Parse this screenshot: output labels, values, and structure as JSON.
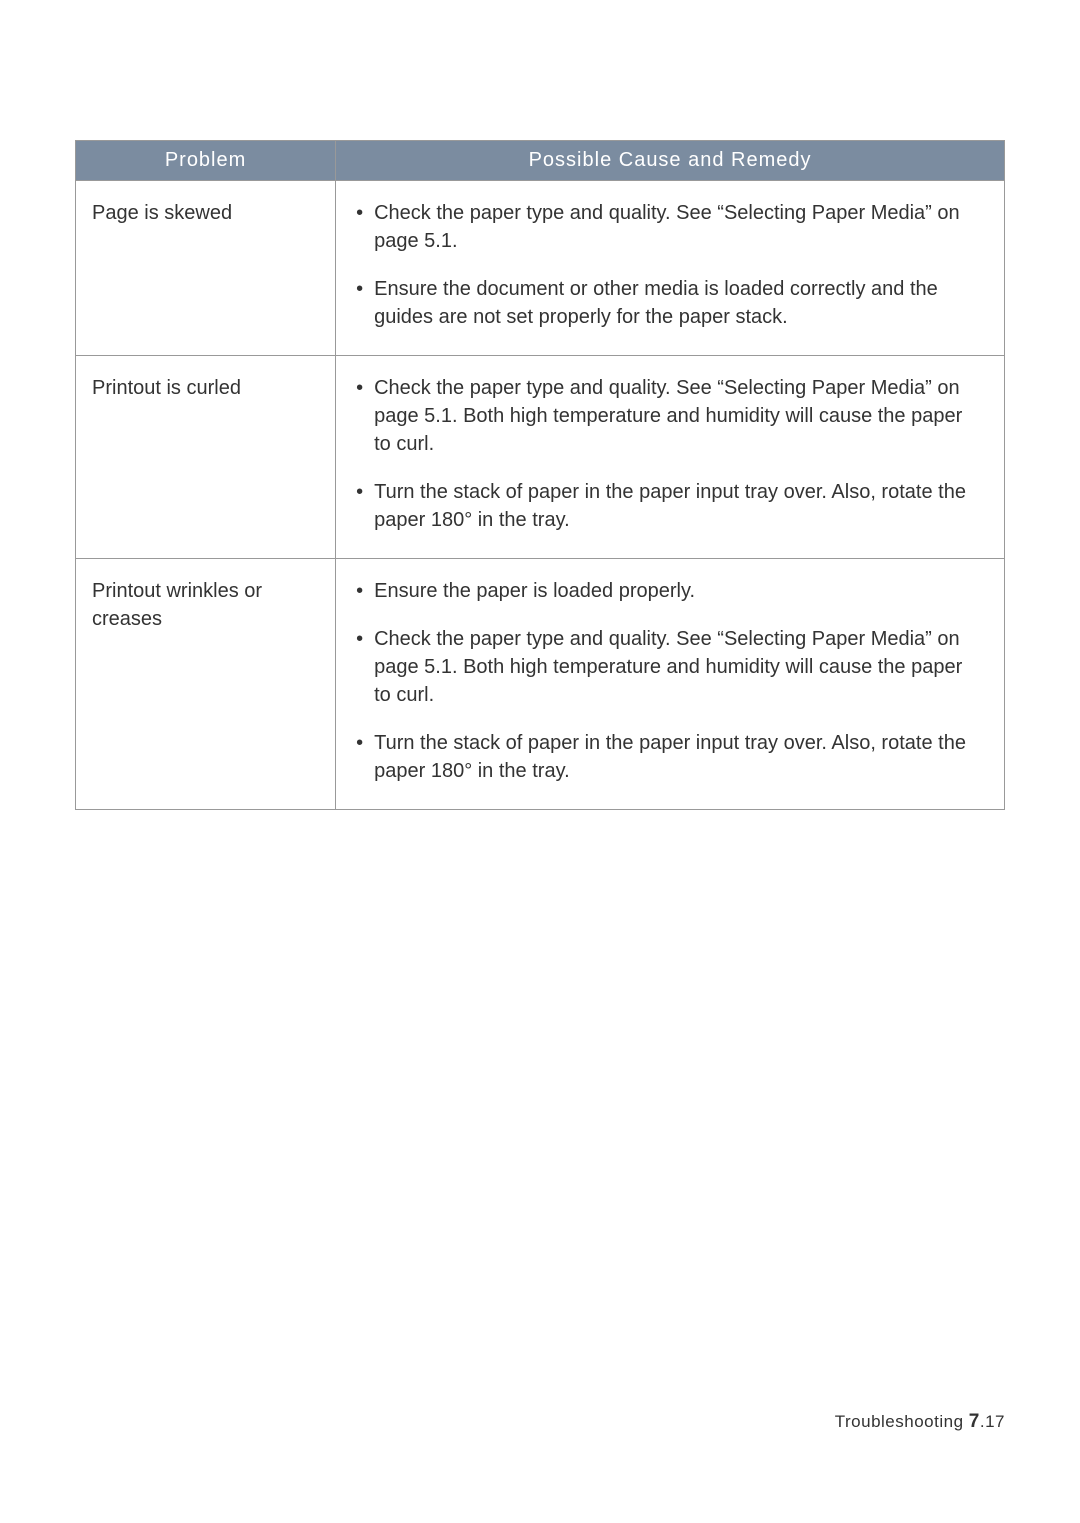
{
  "table": {
    "headers": {
      "problem": "Problem",
      "remedy": "Possible Cause and Remedy"
    },
    "rows": [
      {
        "problem": "Page is skewed",
        "remedies": [
          "Check the paper type and quality. See “Selecting Paper Media” on page 5.1.",
          "Ensure the document or other media is loaded correctly and the guides are not set properly for the paper stack."
        ]
      },
      {
        "problem": "Printout is curled",
        "remedies": [
          "Check the paper type and quality. See “Selecting Paper Media” on page 5.1. Both high temperature and humidity will cause the paper to curl.",
          "Turn the stack of paper in the paper input tray over. Also, rotate the paper 180° in the tray."
        ]
      },
      {
        "problem": "Printout wrinkles or creases",
        "remedies": [
          "Ensure the paper is loaded properly.",
          "Check the paper type and quality. See “Selecting Paper Media” on page 5.1. Both high temperature and humidity will cause the paper to curl.",
          "Turn the stack of paper in the paper input tray over. Also, rotate the paper 180° in the tray."
        ]
      }
    ]
  },
  "footer": {
    "section": "Troubleshooting",
    "chapter": "7",
    "page": ".17"
  },
  "colors": {
    "header_bg": "#7b8ca0",
    "header_text": "#ffffff",
    "border": "#999999",
    "text": "#333333",
    "page_bg": "#ffffff"
  },
  "typography": {
    "header_fontsize": 20,
    "cell_fontsize": 20,
    "footer_fontsize": 17
  }
}
